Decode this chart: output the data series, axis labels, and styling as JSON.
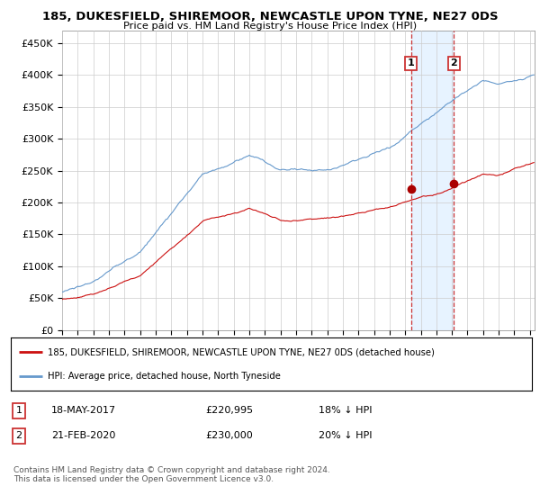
{
  "title": "185, DUKESFIELD, SHIREMOOR, NEWCASTLE UPON TYNE, NE27 0DS",
  "subtitle": "Price paid vs. HM Land Registry's House Price Index (HPI)",
  "ylabel_ticks": [
    "£0",
    "£50K",
    "£100K",
    "£150K",
    "£200K",
    "£250K",
    "£300K",
    "£350K",
    "£400K",
    "£450K"
  ],
  "ytick_values": [
    0,
    50000,
    100000,
    150000,
    200000,
    250000,
    300000,
    350000,
    400000,
    450000
  ],
  "ylim": [
    0,
    470000
  ],
  "xlim_start": 1995.0,
  "xlim_end": 2025.3,
  "hpi_color": "#6699cc",
  "price_color": "#cc1111",
  "sale1_x": 2017.37,
  "sale1_price": 220995,
  "sale2_x": 2020.13,
  "sale2_price": 230000,
  "vline_color": "#cc3333",
  "shade_color": "#ddeeff",
  "marker_color": "#aa0000",
  "legend_label1": "185, DUKESFIELD, SHIREMOOR, NEWCASTLE UPON TYNE, NE27 0DS (detached house)",
  "legend_label2": "HPI: Average price, detached house, North Tyneside",
  "footer": "Contains HM Land Registry data © Crown copyright and database right 2024.\nThis data is licensed under the Open Government Licence v3.0.",
  "background_color": "#ffffff",
  "grid_color": "#cccccc"
}
